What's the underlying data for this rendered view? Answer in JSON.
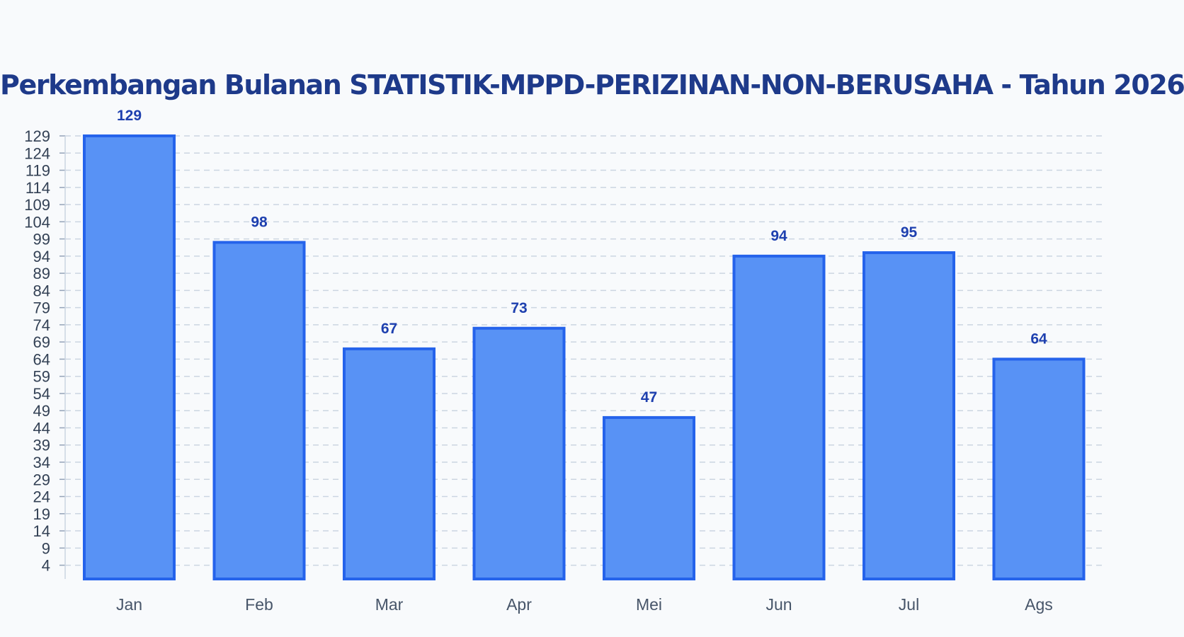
{
  "colors": {
    "bar_fill": "#5892f5",
    "bar_stroke": "#2563eb",
    "title": "#1e3a8a",
    "data_label": "#1e40af"
  },
  "chart_data": {
    "type": "bar",
    "title": "Perkembangan Bulanan STATISTIK-MPPD-PERIZINAN-NON-BERUSAHA - Tahun 2026",
    "xlabel": "",
    "ylabel": "",
    "categories": [
      "Jan",
      "Feb",
      "Mar",
      "Apr",
      "Mei",
      "Jun",
      "Jul",
      "Ags"
    ],
    "values": [
      129,
      98,
      67,
      73,
      47,
      94,
      95,
      64
    ],
    "data_labels": [
      "129",
      "98",
      "67",
      "73",
      "47",
      "94",
      "95",
      "64"
    ],
    "y_ticks": [
      4,
      9,
      14,
      19,
      24,
      29,
      34,
      39,
      44,
      49,
      54,
      59,
      64,
      69,
      74,
      79,
      84,
      89,
      94,
      99,
      104,
      109,
      114,
      119,
      124,
      129
    ],
    "ylim": [
      0,
      129
    ],
    "grid": true,
    "legend": "none"
  }
}
